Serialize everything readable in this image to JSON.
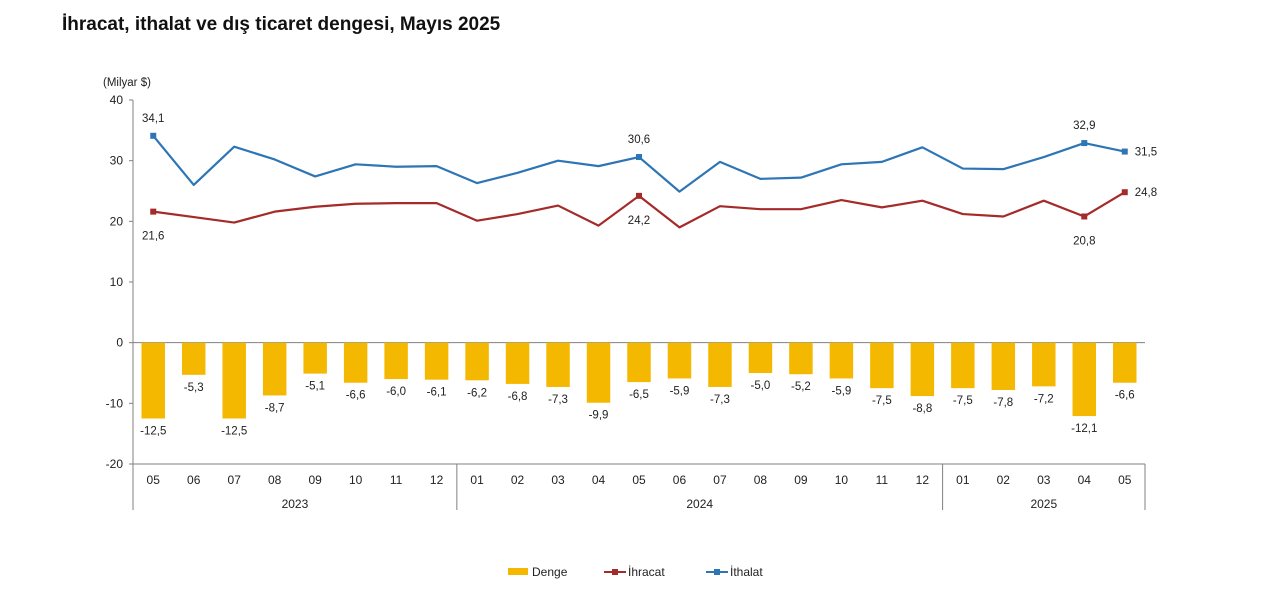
{
  "chart_data": {
    "type": "bar+line",
    "title": "İhracat, ithalat ve dış ticaret dengesi, Mayıs 2025",
    "unit_label": "(Milyar $)",
    "ylim": [
      -20,
      40
    ],
    "yticks": [
      "40",
      "30",
      "20",
      "10",
      "0",
      "-10",
      "-20"
    ],
    "categories": [
      "05",
      "06",
      "07",
      "08",
      "09",
      "10",
      "11",
      "12",
      "01",
      "02",
      "03",
      "04",
      "05",
      "06",
      "07",
      "08",
      "09",
      "10",
      "11",
      "12",
      "01",
      "02",
      "03",
      "04",
      "05"
    ],
    "year_groups": [
      {
        "label": "2023",
        "start": 0,
        "end": 7
      },
      {
        "label": "2024",
        "start": 8,
        "end": 19
      },
      {
        "label": "2025",
        "start": 20,
        "end": 24
      }
    ],
    "series": [
      {
        "name": "Denge",
        "type": "bar",
        "color": "#F5B800",
        "values": [
          -12.5,
          -5.3,
          -12.5,
          -8.7,
          -5.1,
          -6.6,
          -6.0,
          -6.1,
          -6.2,
          -6.8,
          -7.3,
          -9.9,
          -6.5,
          -5.9,
          -7.3,
          -5.0,
          -5.2,
          -5.9,
          -7.5,
          -8.8,
          -7.5,
          -7.8,
          -7.2,
          -12.1,
          -6.6
        ],
        "labels": [
          "-12,5",
          "-5,3",
          "-12,5",
          "-8,7",
          "-5,1",
          "-6,6",
          "-6,0",
          "-6,1",
          "-6,2",
          "-6,8",
          "-7,3",
          "-9,9",
          "-6,5",
          "-5,9",
          "-7,3",
          "-5,0",
          "-5,2",
          "-5,9",
          "-7,5",
          "-8,8",
          "-7,5",
          "-7,8",
          "-7,2",
          "-12,1",
          "-6,6"
        ]
      },
      {
        "name": "İhracat",
        "type": "line",
        "color": "#A52A2A",
        "values": [
          21.6,
          20.7,
          19.8,
          21.6,
          22.4,
          22.9,
          23.0,
          23.0,
          20.1,
          21.2,
          22.6,
          19.3,
          24.2,
          19.0,
          22.5,
          22.0,
          22.0,
          23.5,
          22.3,
          23.4,
          21.2,
          20.8,
          23.4,
          20.8,
          24.8
        ],
        "labels": {
          "0": "21,6",
          "12": "24,2",
          "23": "20,8",
          "24": "24,8"
        }
      },
      {
        "name": "İthalat",
        "type": "line",
        "color": "#2E75B6",
        "values": [
          34.1,
          26.0,
          32.3,
          30.2,
          27.4,
          29.4,
          29.0,
          29.1,
          26.3,
          28.0,
          30.0,
          29.1,
          30.6,
          24.9,
          29.8,
          27.0,
          27.2,
          29.4,
          29.8,
          32.2,
          28.7,
          28.6,
          30.6,
          32.9,
          31.5
        ],
        "labels": {
          "0": "34,1",
          "12": "30,6",
          "23": "32,9",
          "24": "31,5"
        }
      }
    ],
    "legend_position": "bottom"
  }
}
